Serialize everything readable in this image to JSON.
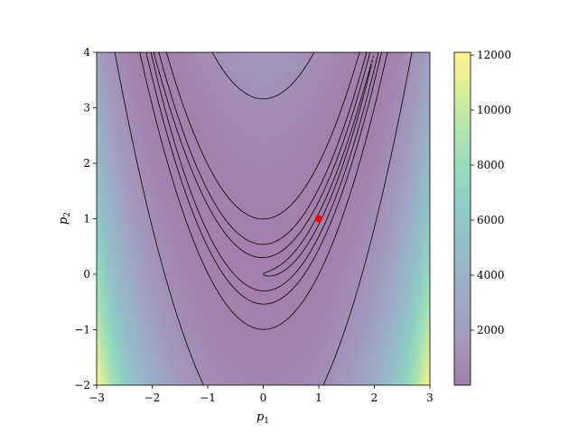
{
  "chart_data": {
    "type": "heatmap",
    "function": "rosenbrock",
    "xlabel": "p",
    "xlabel_sub": "1",
    "ylabel": "p",
    "ylabel_sub": "2",
    "xlim": [
      -3,
      3
    ],
    "ylim": [
      -2,
      4
    ],
    "x_ticks": [
      -3,
      -2,
      -1,
      0,
      1,
      2,
      3
    ],
    "x_tick_labels": [
      "−3",
      "−2",
      "−1",
      "0",
      "1",
      "2",
      "3"
    ],
    "y_ticks": [
      -2,
      -1,
      0,
      1,
      2,
      3,
      4
    ],
    "y_tick_labels": [
      "−2",
      "−1",
      "0",
      "1",
      "2",
      "3",
      "4"
    ],
    "colorbar": {
      "range": [
        0,
        12100
      ],
      "ticks": [
        2000,
        4000,
        6000,
        8000,
        10000,
        12000
      ],
      "tick_labels": [
        "2000",
        "4000",
        "6000",
        "8000",
        "10000",
        "12000"
      ],
      "colormap": "viridis",
      "alpha": 0.5
    },
    "contour_levels": [
      1,
      10,
      30,
      100,
      1000
    ],
    "marker": {
      "x": 1,
      "y": 1,
      "color": "#ff0000"
    },
    "grid": false
  }
}
